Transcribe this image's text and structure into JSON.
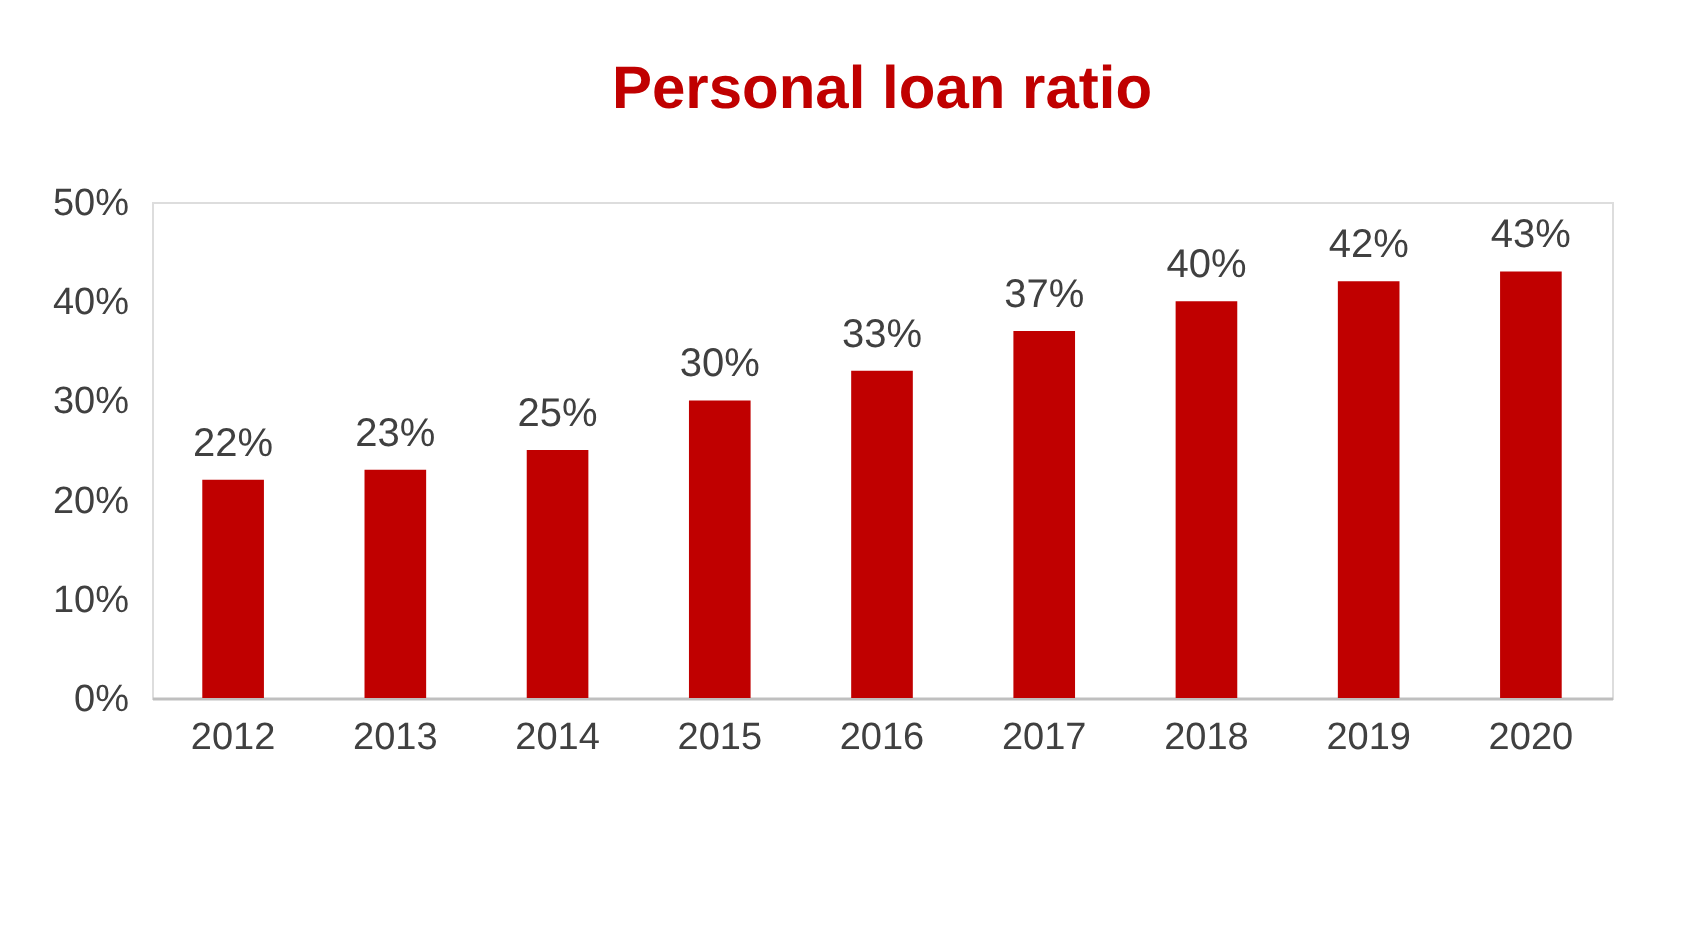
{
  "chart_data": {
    "type": "bar",
    "title": "Personal loan ratio",
    "categories": [
      "2012",
      "2013",
      "2014",
      "2015",
      "2016",
      "2017",
      "2018",
      "2019",
      "2020"
    ],
    "values": [
      22,
      23,
      25,
      30,
      33,
      37,
      40,
      42,
      43
    ],
    "value_labels": [
      "22%",
      "23%",
      "25%",
      "30%",
      "33%",
      "37%",
      "40%",
      "42%",
      "43%"
    ],
    "color": "#c00000",
    "ylim": [
      0,
      50
    ],
    "yticks": [
      {
        "value": 0,
        "label": "0%"
      },
      {
        "value": 10,
        "label": "10%"
      },
      {
        "value": 20,
        "label": "20%"
      },
      {
        "value": 30,
        "label": "30%"
      },
      {
        "value": 40,
        "label": "40%"
      },
      {
        "value": 50,
        "label": "50%"
      }
    ],
    "grid": false
  }
}
